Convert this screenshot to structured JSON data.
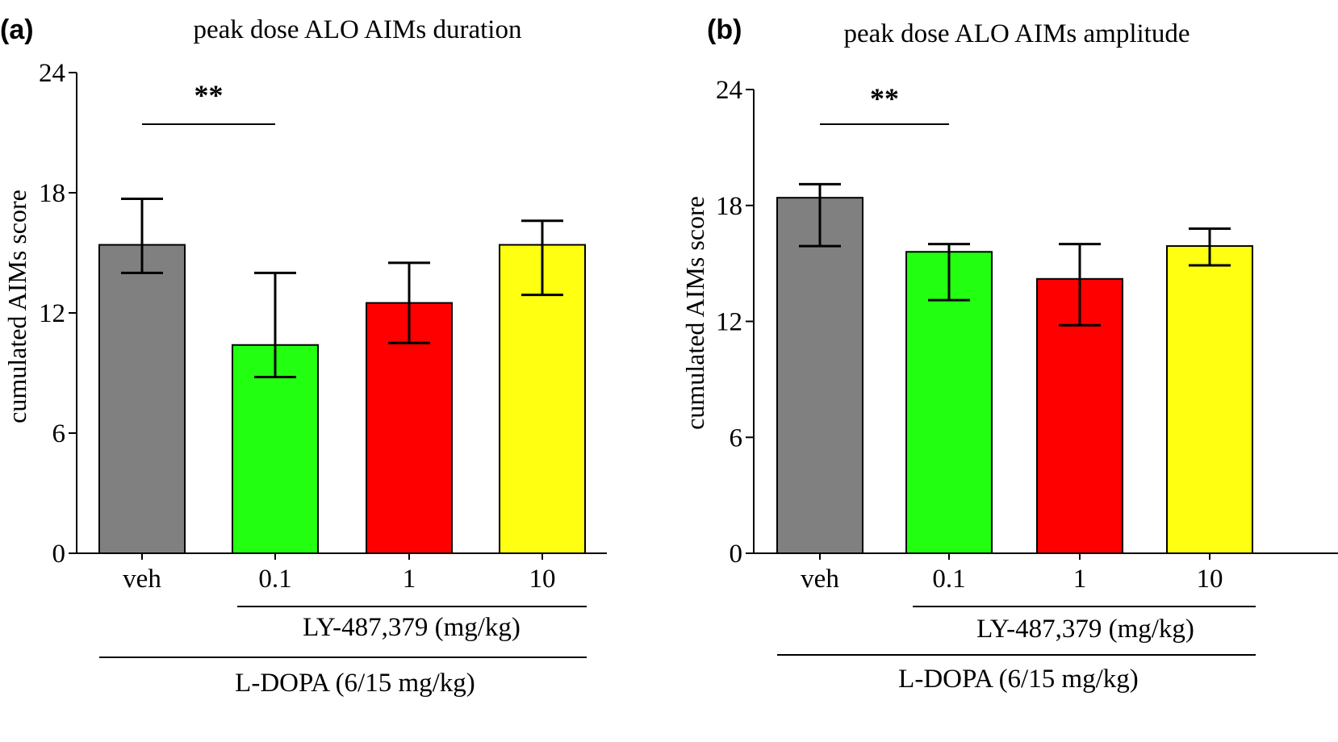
{
  "chart_data": [
    {
      "panel_label": "(a)",
      "type": "bar",
      "title": "peak dose ALO AIMs duration",
      "ylabel": "cumulated AIMs score",
      "xlabel": "",
      "categories": [
        "veh",
        "0.1",
        "1",
        "10"
      ],
      "values": [
        15.4,
        10.4,
        12.5,
        15.4
      ],
      "error_low": [
        14.0,
        8.8,
        10.5,
        12.9
      ],
      "error_high": [
        17.7,
        14.0,
        14.5,
        16.6
      ],
      "colors": [
        "#808080",
        "#22ff11",
        "#ff0000",
        "#ffff11"
      ],
      "ylim": [
        0,
        24
      ],
      "yticks": [
        "0",
        "6",
        "12",
        "18",
        "24"
      ],
      "significance": {
        "label": "**",
        "from": 0,
        "to": 1
      },
      "group_labels": {
        "drug": "LY-487,379 (mg/kg)",
        "ldopa": "L-DOPA (6/15 mg/kg)"
      }
    },
    {
      "panel_label": "(b)",
      "type": "bar",
      "title": "peak dose ALO AIMs amplitude",
      "ylabel": "cumulated AIMs score",
      "xlabel": "",
      "categories": [
        "veh",
        "0.1",
        "1",
        "10"
      ],
      "values": [
        18.4,
        15.6,
        14.2,
        15.9
      ],
      "error_low": [
        15.9,
        13.1,
        11.8,
        14.9
      ],
      "error_high": [
        19.1,
        16.0,
        16.0,
        16.8
      ],
      "colors": [
        "#808080",
        "#22ff11",
        "#ff0000",
        "#ffff11"
      ],
      "ylim": [
        0,
        24
      ],
      "yticks": [
        "0",
        "6",
        "12",
        "18",
        "24"
      ],
      "significance": {
        "label": "**",
        "from": 0,
        "to": 1
      },
      "group_labels": {
        "drug": "LY-487,379 (mg/kg)",
        "ldopa": "L-DOPA (6/15 mg/kg)"
      }
    }
  ]
}
